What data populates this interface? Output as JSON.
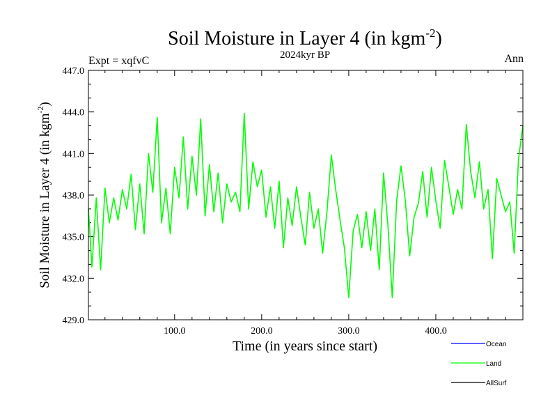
{
  "header": {
    "title_main": "Soil Moisture in Layer 4 (in kgm",
    "title_exp": "-2",
    "title_end": ")",
    "subtitle": "2024kyr BP",
    "expt": "Expt = xqfvC",
    "period": "Ann"
  },
  "chart_data": {
    "type": "line",
    "title": "Soil Moisture in Layer 4 (in kgm-2)",
    "subtitle": "2024kyr BP",
    "xlabel": "Time (in years since start)",
    "ylabel_main": "Soil Moisture in Layer 4 (in kgm",
    "ylabel_exp": "-2",
    "ylabel_end": ")",
    "xlim": [
      1,
      500
    ],
    "ylim": [
      429.0,
      447.0
    ],
    "xticks": [
      100,
      200,
      300,
      400
    ],
    "xtick_labels": [
      "100.0",
      "200.0",
      "300.0",
      "400.0"
    ],
    "yticks": [
      429,
      432,
      435,
      438,
      441,
      444,
      447
    ],
    "ytick_labels": [
      "429.0",
      "432.0",
      "435.0",
      "438.0",
      "441.0",
      "444.0",
      "447.0"
    ],
    "legend": [
      {
        "name": "Ocean",
        "color": "#0000ff"
      },
      {
        "name": "Land",
        "color": "#00ff00"
      },
      {
        "name": "AllSurf",
        "color": "#000000"
      }
    ],
    "series": [
      {
        "name": "Land",
        "color": "#00ff00",
        "x": [
          1,
          5,
          10,
          15,
          20,
          25,
          30,
          35,
          40,
          45,
          50,
          55,
          60,
          65,
          70,
          75,
          80,
          85,
          90,
          95,
          100,
          105,
          110,
          115,
          120,
          125,
          130,
          135,
          140,
          145,
          150,
          155,
          160,
          165,
          170,
          175,
          180,
          185,
          190,
          195,
          200,
          205,
          210,
          215,
          220,
          225,
          230,
          235,
          240,
          245,
          250,
          255,
          260,
          265,
          270,
          275,
          280,
          285,
          290,
          295,
          300,
          305,
          310,
          315,
          320,
          325,
          330,
          335,
          340,
          345,
          350,
          355,
          360,
          365,
          370,
          375,
          380,
          385,
          390,
          395,
          400,
          405,
          410,
          415,
          420,
          425,
          430,
          435,
          440,
          445,
          450,
          455,
          460,
          465,
          470,
          475,
          480,
          485,
          490,
          495,
          500
        ],
        "values": [
          437.0,
          432.8,
          437.8,
          432.6,
          438.5,
          436.0,
          437.8,
          436.2,
          438.4,
          437.0,
          439.5,
          435.5,
          438.8,
          435.2,
          441.0,
          438.2,
          443.6,
          436.0,
          438.5,
          435.2,
          440.0,
          437.8,
          442.2,
          437.0,
          440.8,
          438.0,
          443.5,
          436.5,
          440.2,
          436.8,
          439.6,
          436.0,
          438.8,
          437.5,
          438.2,
          436.8,
          443.9,
          437.0,
          440.4,
          438.6,
          439.8,
          436.4,
          438.6,
          435.6,
          439.0,
          434.2,
          437.8,
          435.8,
          438.6,
          436.4,
          434.4,
          438.2,
          435.6,
          437.0,
          433.8,
          436.8,
          440.9,
          438.4,
          436.2,
          434.2,
          430.6,
          435.4,
          436.6,
          434.2,
          436.8,
          434.0,
          437.0,
          432.6,
          439.6,
          435.8,
          430.6,
          437.6,
          440.1,
          437.6,
          433.6,
          436.4,
          437.4,
          439.7,
          436.4,
          440.0,
          437.6,
          435.6,
          440.5,
          438.6,
          436.6,
          438.4,
          437.0,
          443.1,
          439.7,
          437.8,
          440.4,
          437.0,
          438.4,
          433.4,
          439.2,
          438.0,
          436.8,
          437.5,
          433.8,
          440.6,
          443.0
        ]
      }
    ]
  }
}
